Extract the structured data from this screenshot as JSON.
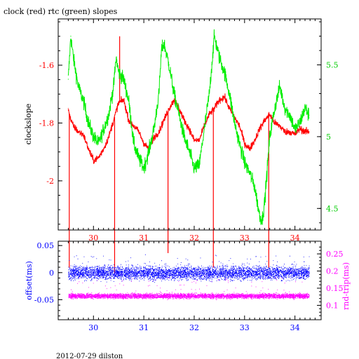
{
  "title": "clock (red) rtc (green) slopes",
  "footer": "2012-07-29 dilston",
  "colors": {
    "clock": "#ff0000",
    "rtc": "#00ee00",
    "offset": "#0000ff",
    "roundtrip": "#ff00ff",
    "axis": "#000000"
  },
  "chart_data": [
    {
      "type": "line",
      "title": "clock (red) rtc (green) slopes",
      "ylabel": "clockslope",
      "xlim": [
        29.3,
        34.52
      ],
      "ylim": [
        -2.17,
        -1.44
      ],
      "y2lim": [
        4.35,
        5.82
      ],
      "grid": false,
      "legend": "none",
      "xticks": [
        30,
        31,
        32,
        33,
        34
      ],
      "xtick_labels": [
        "30",
        "31",
        "32",
        "33",
        "34"
      ],
      "yticks": [
        -2,
        -1.8,
        -1.6
      ],
      "ytick_labels": [
        "-2",
        "-1.8",
        "-1.6"
      ],
      "y2ticks": [
        4.5,
        5,
        5.5
      ],
      "y2tick_labels": [
        "4.5",
        "5",
        "5.5"
      ],
      "series": [
        {
          "axis": "left",
          "x": [
            29.5,
            29.55,
            29.6,
            29.7,
            29.8,
            29.9,
            30.0,
            30.1,
            30.2,
            30.3,
            30.4,
            30.5,
            30.6,
            30.7,
            30.8,
            30.9,
            31.0,
            31.1,
            31.2,
            31.3,
            31.4,
            31.5,
            31.6,
            31.7,
            31.8,
            31.9,
            32.0,
            32.1,
            32.2,
            32.3,
            32.4,
            32.5,
            32.6,
            32.7,
            32.8,
            32.9,
            33.0,
            33.1,
            33.2,
            33.3,
            33.4,
            33.5,
            33.6,
            33.7,
            33.8,
            33.9,
            34.0,
            34.1,
            34.2,
            34.28
          ],
          "y": [
            -1.75,
            -1.79,
            -1.81,
            -1.83,
            -1.84,
            -1.89,
            -1.93,
            -1.92,
            -1.89,
            -1.85,
            -1.79,
            -1.73,
            -1.72,
            -1.79,
            -1.81,
            -1.83,
            -1.87,
            -1.89,
            -1.85,
            -1.83,
            -1.79,
            -1.75,
            -1.72,
            -1.75,
            -1.79,
            -1.82,
            -1.86,
            -1.86,
            -1.81,
            -1.77,
            -1.75,
            -1.72,
            -1.71,
            -1.75,
            -1.78,
            -1.81,
            -1.87,
            -1.89,
            -1.86,
            -1.82,
            -1.79,
            -1.77,
            -1.8,
            -1.81,
            -1.83,
            -1.83,
            -1.84,
            -1.82,
            -1.83,
            -1.83
          ],
          "spikes": [
            {
              "x": 29.52,
              "y": -2.3
            },
            {
              "x": 30.42,
              "y": -2.32
            },
            {
              "x": 30.52,
              "y": -1.5
            },
            {
              "x": 31.48,
              "y": -2.25
            },
            {
              "x": 32.38,
              "y": -2.3
            },
            {
              "x": 33.48,
              "y": -2.3
            }
          ]
        },
        {
          "axis": "right",
          "x": [
            29.5,
            29.55,
            29.6,
            29.65,
            29.7,
            29.8,
            29.9,
            30.0,
            30.1,
            30.2,
            30.3,
            30.4,
            30.45,
            30.5,
            30.6,
            30.7,
            30.8,
            30.9,
            31.0,
            31.1,
            31.2,
            31.3,
            31.35,
            31.4,
            31.5,
            31.6,
            31.7,
            31.8,
            31.9,
            32.0,
            32.1,
            32.2,
            32.3,
            32.35,
            32.4,
            32.5,
            32.6,
            32.7,
            32.8,
            32.9,
            33.0,
            33.1,
            33.2,
            33.3,
            33.35,
            33.4,
            33.5,
            33.6,
            33.7,
            33.8,
            33.9,
            34.0,
            34.1,
            34.2,
            34.28
          ],
          "y": [
            5.4,
            5.7,
            5.55,
            5.45,
            5.35,
            5.25,
            5.1,
            5.0,
            4.95,
            5.05,
            5.15,
            5.35,
            5.55,
            5.45,
            5.4,
            5.25,
            4.95,
            4.85,
            4.78,
            4.9,
            5.05,
            5.3,
            5.6,
            5.65,
            5.5,
            5.3,
            5.15,
            5.0,
            4.9,
            4.78,
            4.8,
            5.05,
            5.3,
            5.5,
            5.7,
            5.55,
            5.45,
            5.3,
            5.1,
            4.95,
            4.82,
            4.75,
            4.65,
            4.45,
            4.42,
            4.55,
            5.0,
            5.2,
            5.35,
            5.2,
            5.15,
            5.05,
            5.1,
            5.2,
            5.15
          ]
        }
      ]
    },
    {
      "type": "scatter",
      "xlim": [
        29.3,
        34.52
      ],
      "ylim": [
        -0.087,
        0.058
      ],
      "y2lim": [
        0.058,
        0.287
      ],
      "ylabel": "offset(ms)",
      "y2label": "rnd-trip(ms)",
      "xticks": [
        30,
        31,
        32,
        33,
        34
      ],
      "xtick_labels": [
        "30",
        "31",
        "32",
        "33",
        "34"
      ],
      "yticks": [
        -0.05,
        0,
        0.05
      ],
      "ytick_labels": [
        "-0.05",
        "0",
        "0.05"
      ],
      "y2ticks": [
        0.1,
        0.15,
        0.2,
        0.25
      ],
      "y2tick_labels": [
        "0.1",
        "0.15",
        "0.2",
        "0.25"
      ],
      "grid": false,
      "legend": "none",
      "x_range": [
        29.5,
        34.28
      ],
      "series": [
        {
          "axis": "left",
          "center": 0.0,
          "spread": 0.012,
          "outlier_max": 0.035
        },
        {
          "axis": "right",
          "center": 0.128,
          "spread": 0.007,
          "outlier_max": 0.2
        }
      ]
    }
  ]
}
